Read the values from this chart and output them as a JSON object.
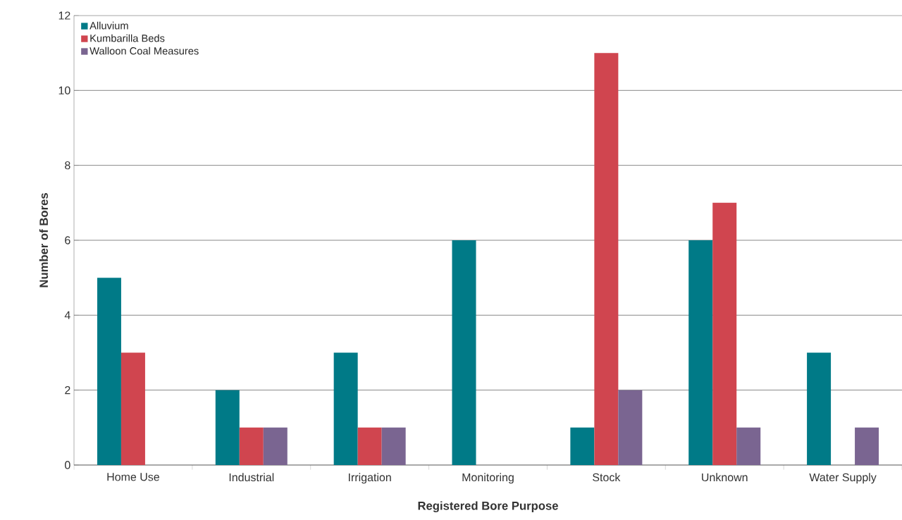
{
  "chart_data": {
    "type": "bar",
    "xlabel": "Registered Bore Purpose",
    "ylabel": "Number of Bores",
    "categories": [
      "Home Use",
      "Industrial",
      "Irrigation",
      "Monitoring",
      "Stock",
      "Unknown",
      "Water Supply"
    ],
    "series": [
      {
        "name": "Alluvium",
        "color": "#007a87",
        "values": [
          5,
          2,
          3,
          6,
          1,
          6,
          3
        ]
      },
      {
        "name": "Kumbarilla Beds",
        "color": "#d0454f",
        "values": [
          3,
          1,
          1,
          0,
          11,
          7,
          0
        ]
      },
      {
        "name": "Walloon Coal Measures",
        "color": "#7a6591",
        "values": [
          0,
          1,
          1,
          0,
          2,
          1,
          1
        ]
      }
    ],
    "ylim": [
      0,
      12
    ],
    "yticks": [
      0,
      2,
      4,
      6,
      8,
      10,
      12
    ],
    "grid": "y",
    "legend": "top left"
  }
}
